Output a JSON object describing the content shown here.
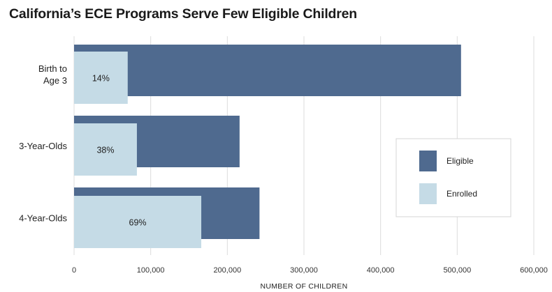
{
  "chart_data": {
    "type": "bar",
    "orientation": "horizontal",
    "title": "California’s ECE Programs Serve Few Eligible Children",
    "categories": [
      [
        "Birth to",
        "Age 3"
      ],
      [
        "3-Year-Olds"
      ],
      [
        "4-Year-Olds"
      ]
    ],
    "series": [
      {
        "name": "Eligible",
        "values": [
          505000,
          216000,
          242000
        ],
        "color": "#4f6a8f"
      },
      {
        "name": "Enrolled",
        "values": [
          70000,
          82000,
          166000
        ],
        "color": "#c5dbe6"
      }
    ],
    "data_labels": [
      "14%",
      "38%",
      "69%"
    ],
    "xlabel": "NUMBER OF CHILDREN",
    "xlim": [
      0,
      600000
    ],
    "xticks": [
      0,
      100000,
      200000,
      300000,
      400000,
      500000,
      600000
    ],
    "xtick_labels": [
      "0",
      "100,000",
      "200,000",
      "300,000",
      "400,000",
      "500,000",
      "600,000"
    ],
    "grid": "vertical",
    "legend_position": "right"
  }
}
